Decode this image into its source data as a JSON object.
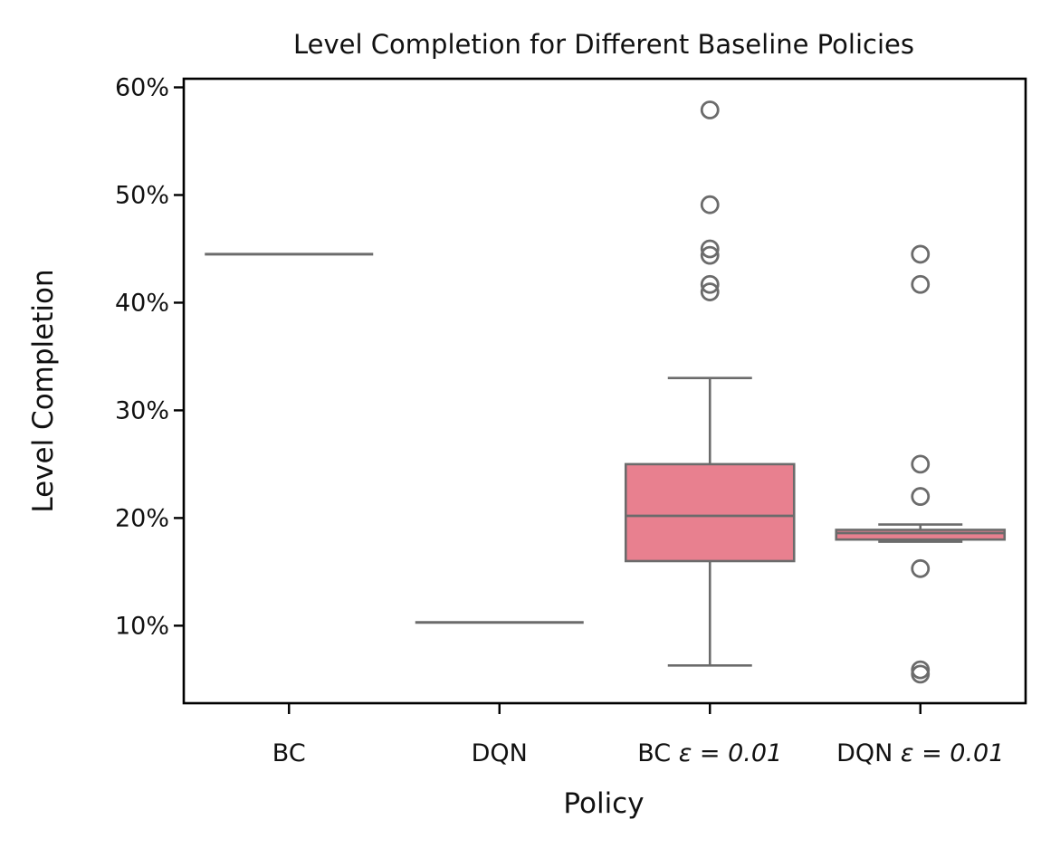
{
  "chart_data": {
    "type": "box",
    "title": "Level Completion for Different Baseline Policies",
    "xlabel": "Policy",
    "ylabel": "Level Completion",
    "ylim": [
      2.8,
      60.8
    ],
    "yticks": [
      10,
      20,
      30,
      40,
      50,
      60
    ],
    "ytick_labels": [
      "10%",
      "20%",
      "30%",
      "40%",
      "50%",
      "60%"
    ],
    "y_unit": "percent",
    "grid": false,
    "legend": false,
    "box_color": "#e8808f",
    "line_color": "#6b6b6b",
    "categories": [
      {
        "label_parts": [
          "BC",
          ""
        ],
        "min": 44.5,
        "q1": 44.5,
        "median": 44.5,
        "q3": 44.5,
        "max": 44.5,
        "outliers": []
      },
      {
        "label_parts": [
          "DQN",
          ""
        ],
        "min": 10.3,
        "q1": 10.3,
        "median": 10.3,
        "q3": 10.3,
        "max": 10.3,
        "outliers": []
      },
      {
        "label_parts": [
          "BC",
          "ε = 0.01"
        ],
        "min": 6.3,
        "q1": 16.0,
        "median": 20.2,
        "q3": 25.0,
        "max": 33.0,
        "outliers": [
          41.0,
          41.7,
          44.4,
          45.0,
          49.1,
          57.9
        ]
      },
      {
        "label_parts": [
          "DQN",
          "ε = 0.01"
        ],
        "min": 17.8,
        "q1": 18.0,
        "median": 18.6,
        "q3": 18.9,
        "max": 19.4,
        "outliers": [
          5.5,
          5.9,
          15.3,
          22.0,
          25.0,
          41.7,
          44.5
        ]
      }
    ]
  }
}
